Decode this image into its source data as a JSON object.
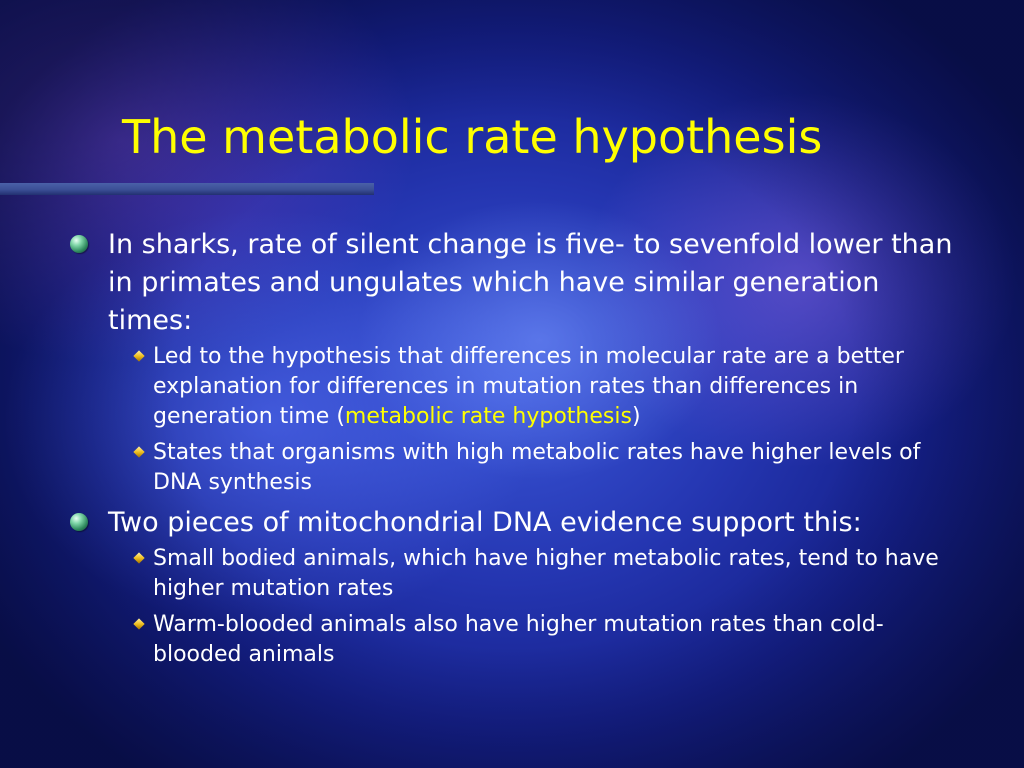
{
  "slide": {
    "title": "The metabolic rate hypothesis",
    "bullets": [
      {
        "text": "In sharks, rate of silent change is five- to sevenfold lower than in primates and ungulates which have similar generation times:",
        "sub": [
          {
            "before": "Led to the hypothesis that differences in molecular rate are a better explanation for differences in mutation rates than differences in generation time (",
            "highlight": "metabolic rate hypothesis",
            "after": ")"
          },
          {
            "text": "States that organisms with high metabolic rates have higher levels of DNA synthesis"
          }
        ]
      },
      {
        "text": "Two pieces of mitochondrial DNA evidence support this:",
        "sub": [
          {
            "text": "Small bodied animals, which have higher metabolic rates, tend to have higher mutation rates"
          },
          {
            "text": "Warm-blooded animals also have higher mutation rates than cold-blooded animals"
          }
        ]
      }
    ]
  },
  "style": {
    "title_color": "#ffff00",
    "text_color": "#ffffff",
    "highlight_color": "#ffff00",
    "level1_bullet_icon": "green-sphere-bullet-icon",
    "level2_bullet_icon": "gold-diamond-bullet-icon"
  }
}
